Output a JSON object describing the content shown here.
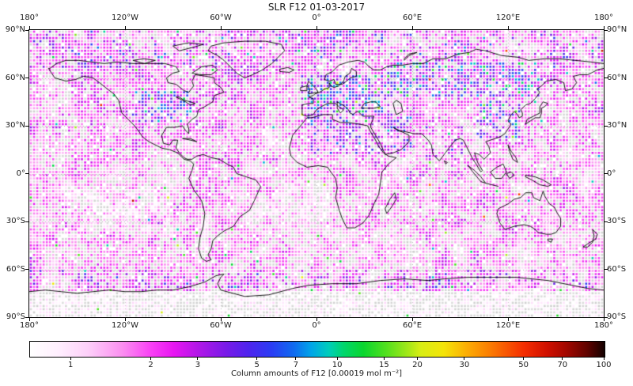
{
  "title": "SLR F12 01-03-2017",
  "axes": {
    "lon_tick_labels": [
      "180°",
      "120°W",
      "60°W",
      "0°",
      "60°E",
      "120°E",
      "180°"
    ],
    "lat_tick_labels": [
      "90°N",
      "60°N",
      "30°N",
      "0°",
      "30°S",
      "60°S",
      "90°S"
    ],
    "graticule_lon_deg": [
      -120,
      -60,
      0,
      60,
      120
    ],
    "graticule_lat_deg": [
      60,
      30,
      0,
      -30,
      -60
    ]
  },
  "colorbar": {
    "label": "Column amounts of F12 [0.00019 mol m⁻²]",
    "scale": "log",
    "vmin": 0.7,
    "vmax": 100,
    "tick_values": [
      1,
      2,
      3,
      5,
      7,
      10,
      15,
      20,
      30,
      50,
      70,
      100
    ],
    "tick_labels": [
      "1",
      "2",
      "3",
      "5",
      "7",
      "10",
      "15",
      "20",
      "30",
      "50",
      "70",
      "100"
    ],
    "gradient_stops": [
      [
        0.0,
        "#ffffff"
      ],
      [
        0.05,
        "#ffeefe"
      ],
      [
        0.1,
        "#fdd0f9"
      ],
      [
        0.16,
        "#fb8ff0"
      ],
      [
        0.21,
        "#f940f5"
      ],
      [
        0.25,
        "#e816f2"
      ],
      [
        0.29,
        "#b517e8"
      ],
      [
        0.34,
        "#7a1ae8"
      ],
      [
        0.38,
        "#4f24ee"
      ],
      [
        0.42,
        "#2b3cf4"
      ],
      [
        0.46,
        "#0f6cf0"
      ],
      [
        0.49,
        "#00a6e8"
      ],
      [
        0.52,
        "#00cdbb"
      ],
      [
        0.545,
        "#00d66e"
      ],
      [
        0.58,
        "#0ad62f"
      ],
      [
        0.62,
        "#52e01e"
      ],
      [
        0.66,
        "#a8e818"
      ],
      [
        0.68,
        "#d8ee14"
      ],
      [
        0.72,
        "#f4e408"
      ],
      [
        0.76,
        "#fcae04"
      ],
      [
        0.8,
        "#fb7d02"
      ],
      [
        0.86,
        "#f42d01"
      ],
      [
        0.9,
        "#d01000"
      ],
      [
        0.93,
        "#a80800"
      ],
      [
        0.97,
        "#600300"
      ],
      [
        1.0,
        "#140100"
      ]
    ]
  },
  "chart_data": {
    "type": "scatter",
    "title": "SLR F12 01-03-2017",
    "projection": "equirectangular",
    "lon_range": [
      -180,
      180
    ],
    "lat_range": [
      -90,
      90
    ],
    "grid_resolution_deg": 2,
    "units": "0.00019 mol m⁻²",
    "value_range": [
      0.7,
      100
    ],
    "field_summary": {
      "background_ocean": "pale pink to light magenta dots, values ~0.8-1.5",
      "no_data": "roughly 30% of cells drawn as light gray dots; some land patches empty (white)",
      "elevated": "magenta-purple-navy clusters (values 2-8) over Europe, Russia/Siberia, East Asia, central North America, Middle East / North Africa",
      "low": "near-white values (<0.8) over subtropical South Pacific, South Atlantic and Antarctic interior",
      "outliers": "isolated cyan/green dots (5-15) mostly at high latitudes; rare yellow and red dots (20-60)"
    },
    "hotspots": [
      {
        "name": "europe",
        "lon": [
          -10,
          45
        ],
        "lat": [
          38,
          62
        ],
        "p": 0.55,
        "dt": 0.18,
        "p2": 0.16,
        "dt2": 0.15
      },
      {
        "name": "russia-siberia",
        "lon": [
          45,
          140
        ],
        "lat": [
          48,
          70
        ],
        "p": 0.5,
        "dt": 0.17,
        "p2": 0.15,
        "dt2": 0.15
      },
      {
        "name": "east-asia",
        "lon": [
          100,
          128
        ],
        "lat": [
          22,
          46
        ],
        "p": 0.5,
        "dt": 0.15,
        "p2": 0.12,
        "dt2": 0.14
      },
      {
        "name": "central-north-america",
        "lon": [
          -115,
          -78
        ],
        "lat": [
          32,
          52
        ],
        "p": 0.45,
        "dt": 0.15,
        "p2": 0.12,
        "dt2": 0.14
      },
      {
        "name": "middle-east-north-africa",
        "lon": [
          -5,
          60
        ],
        "lat": [
          12,
          38
        ],
        "p": 0.5,
        "dt": 0.14,
        "p2": 0.08,
        "dt2": 0.1
      },
      {
        "name": "india",
        "lon": [
          68,
          92
        ],
        "lat": [
          8,
          30
        ],
        "p": 0.4,
        "dt": 0.1
      },
      {
        "name": "antarctic-coastal-band",
        "lon": [
          -180,
          180
        ],
        "lat": [
          -72,
          -60
        ],
        "p": 0.3,
        "dt": 0.11
      },
      {
        "name": "arctic",
        "lon": [
          -180,
          180
        ],
        "lat": [
          66,
          90
        ],
        "p": 0.25,
        "dt": 0.1
      },
      {
        "name": "south-pacific-low",
        "lon": [
          -160,
          -90
        ],
        "lat": [
          -40,
          -8
        ],
        "p": 0.6,
        "dt": -0.07
      },
      {
        "name": "south-atlantic-low",
        "lon": [
          -40,
          10
        ],
        "lat": [
          -40,
          -5
        ],
        "p": 0.5,
        "dt": -0.05
      }
    ],
    "noise": {
      "base_t": 0.04,
      "amp": 0.22,
      "jitter": 0.1
    },
    "outlier_probs": {
      "cyan_green": 0.006,
      "yellow": 0.0015,
      "red_dark": 0.0005,
      "polar_extra": 0.03
    },
    "gray_prob": {
      "default": 0.3,
      "strong_signal": 0.1,
      "antarctic_interior": 0.5
    },
    "empty_prob": 0.04
  },
  "colors": {
    "background": "#ffffff",
    "frame": "#000000",
    "coastline": "#000000",
    "gridline": "#b5b5b5",
    "gray_dot": "#d6d6d6",
    "text": "#1a1a1a"
  }
}
